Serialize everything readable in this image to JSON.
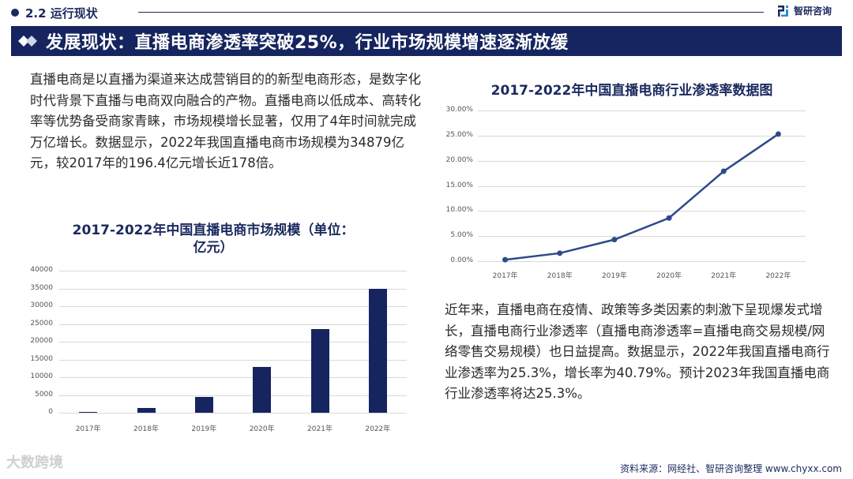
{
  "header": {
    "section_label": "2.2 运行现状",
    "brand_name": "智研咨询",
    "title": "发展现状：直播电商渗透率突破25%，行业市场规模增速逐渐放缓"
  },
  "left_paragraph": "直播电商是以直播为渠道来达成营销目的的新型电商形态，是数字化时代背景下直播与电商双向融合的产物。直播电商以低成本、高转化率等优势备受商家青睐，市场规模增长显著，仅用了4年时间就完成万亿增长。数据显示，2022年我国直播电商市场规模为34879亿元，较2017年的196.4亿元增长近178倍。",
  "right_paragraph": "近年来，直播电商在疫情、政策等多类因素的刺激下呈现爆发式增长，直播电商行业渗透率（直播电商渗透率=直播电商交易规模/网络零售交易规模）也日益提高。数据显示，2022年我国直播电商行业渗透率为25.3%，增长率为40.79%。预计2023年我国直播电商行业渗透率将达25.3%。",
  "footer": {
    "source": "资料来源：网经社、智研咨询整理  www.chyxx.com",
    "watermark": "大数跨境"
  },
  "colors": {
    "primary": "#16255f",
    "line": "#2e4a8a",
    "grid": "#d9d9d9"
  },
  "chart_data": [
    {
      "type": "bar",
      "title": "2017-2022年中国直播电商市场规模（单位：亿元）",
      "title_line1": "2017-2022年中国直播电商市场规模（单位：",
      "title_line2": "亿元）",
      "categories": [
        "2017年",
        "2018年",
        "2019年",
        "2020年",
        "2021年",
        "2022年"
      ],
      "values": [
        196.4,
        1400,
        4400,
        12900,
        23600,
        34879
      ],
      "yticks": [
        "0",
        "5000",
        "10000",
        "15000",
        "20000",
        "25000",
        "30000",
        "35000",
        "40000"
      ],
      "ylim": [
        0,
        40000
      ],
      "xlabel": "",
      "ylabel": "亿元",
      "grid": true,
      "legend": null
    },
    {
      "type": "line",
      "title": "2017-2022年中国直播电商行业渗透率数据图",
      "categories": [
        "2017年",
        "2018年",
        "2019年",
        "2020年",
        "2021年",
        "2022年"
      ],
      "values": [
        0.3,
        1.6,
        4.3,
        8.6,
        17.9,
        25.3
      ],
      "yticks": [
        "0.00%",
        "5.00%",
        "10.00%",
        "15.00%",
        "20.00%",
        "25.00%",
        "30.00%"
      ],
      "ylim": [
        0,
        30
      ],
      "xlabel": "",
      "ylabel": "%",
      "grid": true,
      "legend": null
    }
  ]
}
